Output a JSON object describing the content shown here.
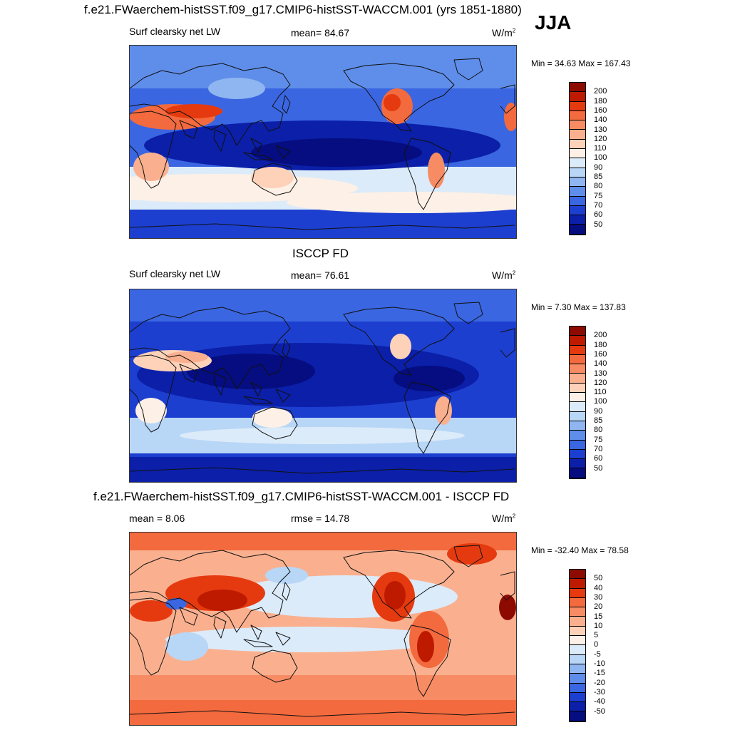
{
  "season": "JJA",
  "units": {
    "base": "W/m",
    "sup": "2"
  },
  "panels": [
    {
      "title": "f.e21.FWaerchem-histSST.f09_g17.CMIP6-histSST-WACCM.001 (yrs 1851-1880)",
      "left_label": "Surf clearsky net LW",
      "center_label": "mean=  84.67",
      "minmax": "Min =  34.63 Max = 167.43",
      "colorbar": {
        "ticks": [
          "200",
          "180",
          "160",
          "140",
          "130",
          "120",
          "110",
          "100",
          "90",
          "85",
          "80",
          "75",
          "70",
          "60",
          "50"
        ],
        "colors": [
          "#8c0a00",
          "#bd1a00",
          "#e53a0f",
          "#f36a3e",
          "#f78c64",
          "#fab08f",
          "#fdd2b9",
          "#fdf0e6",
          "#dcebf9",
          "#b8d6f6",
          "#8fb6f0",
          "#5f8eea",
          "#3a66e1",
          "#1d3fd0",
          "#0b1fa8",
          "#050d80"
        ]
      }
    },
    {
      "title": "ISCCP FD",
      "left_label": "Surf clearsky net LW",
      "center_label": "mean=  76.61",
      "minmax": "Min =   7.30 Max = 137.83",
      "colorbar": {
        "ticks": [
          "200",
          "180",
          "160",
          "140",
          "130",
          "120",
          "110",
          "100",
          "90",
          "85",
          "80",
          "75",
          "70",
          "60",
          "50"
        ],
        "colors": [
          "#8c0a00",
          "#bd1a00",
          "#e53a0f",
          "#f36a3e",
          "#f78c64",
          "#fab08f",
          "#fdd2b9",
          "#fdf0e6",
          "#dcebf9",
          "#b8d6f6",
          "#8fb6f0",
          "#5f8eea",
          "#3a66e1",
          "#1d3fd0",
          "#0b1fa8",
          "#050d80"
        ]
      }
    },
    {
      "title": "f.e21.FWaerchem-histSST.f09_g17.CMIP6-histSST-WACCM.001 - ISCCP FD",
      "left_label": "mean =   8.06",
      "center_label": "rmse =  14.78",
      "minmax": "Min = -32.40 Max =  78.58",
      "colorbar": {
        "ticks": [
          "50",
          "40",
          "30",
          "20",
          "15",
          "10",
          "5",
          "0",
          "-5",
          "-10",
          "-15",
          "-20",
          "-30",
          "-40",
          "-50"
        ],
        "colors": [
          "#8c0a00",
          "#bd1a00",
          "#e53a0f",
          "#f36a3e",
          "#f78c64",
          "#fab08f",
          "#fdd2b9",
          "#fdf0e6",
          "#dcebf9",
          "#b8d6f6",
          "#8fb6f0",
          "#5f8eea",
          "#3a66e1",
          "#1d3fd0",
          "#0b1fa8",
          "#050d80"
        ]
      }
    }
  ]
}
